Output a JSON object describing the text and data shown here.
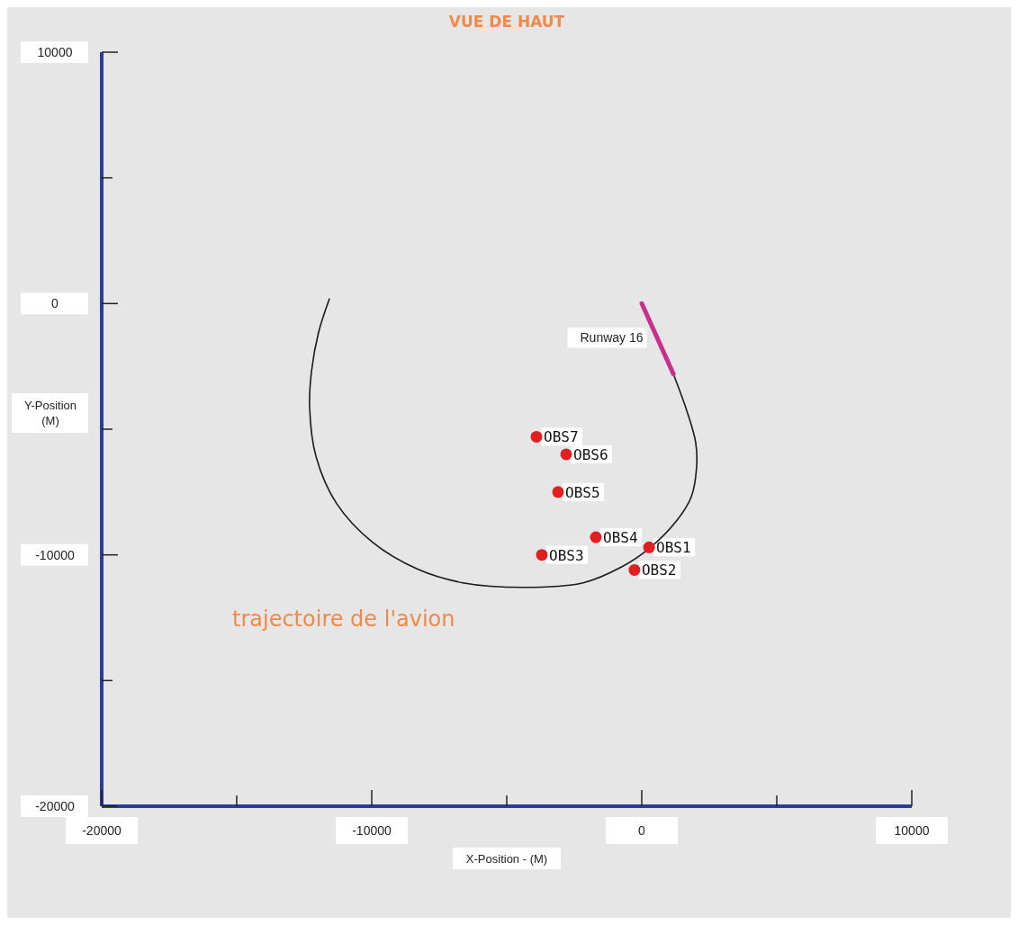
{
  "chart_data": {
    "type": "scatter",
    "title": "VUE DE HAUT",
    "xlabel": "X-Position - (M)",
    "ylabel": "Y-Position (M)",
    "xlim": [
      -20000,
      10000
    ],
    "ylim": [
      -20000,
      10000
    ],
    "xticks": [
      -20000,
      {
        "value": -15000,
        "label": null
      },
      -10000,
      {
        "value": -5000,
        "label": null
      },
      0,
      {
        "value": 5000,
        "label": null
      },
      10000
    ],
    "yticks": [
      -20000,
      {
        "value": -15000,
        "label": null
      },
      {
        "value": -10000,
        "label": "-10000"
      },
      {
        "value": -5000,
        "label": null
      },
      0,
      {
        "value": 5000,
        "label": null
      },
      10000
    ],
    "grid": false,
    "series": [
      {
        "type": "line",
        "color": "#1a1a1a",
        "marker": "none",
        "x": [
          1170,
          1700,
          2000,
          2030,
          1830,
          1270,
          270,
          -730,
          -2170,
          -4400,
          -6630,
          -8300,
          -9970,
          -11300,
          -12070,
          -12300,
          -12230,
          -11970,
          -11570
        ],
        "values": [
          -2800,
          -4370,
          -5550,
          -6520,
          -7700,
          -8670,
          -9750,
          -10470,
          -11110,
          -11290,
          -11110,
          -10570,
          -9500,
          -7960,
          -6060,
          -4120,
          -2690,
          -1150,
          180
        ]
      },
      {
        "type": "line",
        "color": "#c8308c",
        "marker": "none",
        "x": [
          0,
          1170
        ],
        "values": [
          0,
          -2800
        ]
      },
      {
        "color": "#e02020",
        "marker": "circle",
        "x": [
          270,
          -270,
          -3700,
          -1700,
          -3100,
          -2800,
          -3900
        ],
        "values": [
          -9700,
          -10600,
          -10000,
          -9300,
          -7500,
          -6000,
          -5300
        ]
      }
    ],
    "annotations": [
      {
        "text": "Runway 16",
        "x": 585,
        "y": -1400
      },
      {
        "text": "OBS1",
        "x": 270,
        "y": -9700
      },
      {
        "text": "OBS2",
        "x": -270,
        "y": -10600
      },
      {
        "text": "OBS3",
        "x": -3700,
        "y": -10000
      },
      {
        "text": "OBS4",
        "x": -1700,
        "y": -9300
      },
      {
        "text": "OBS5",
        "x": -3100,
        "y": -7500
      },
      {
        "text": "OBS6",
        "x": -2800,
        "y": -6000
      },
      {
        "text": "OBS7",
        "x": -3900,
        "y": -5300
      },
      "trajectoire de l'avion"
    ]
  }
}
